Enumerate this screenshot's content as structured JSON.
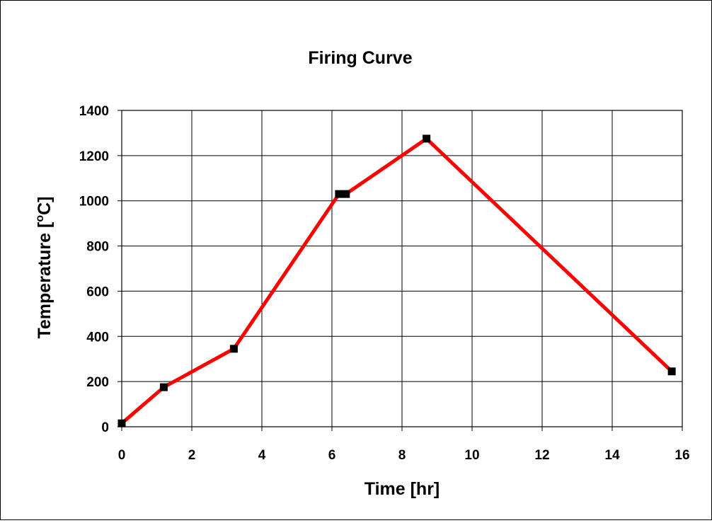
{
  "chart_data": {
    "type": "line",
    "title": "Firing Curve",
    "xlabel": "Time [hr]",
    "ylabel": {
      "main": "Temperature [",
      "superscript": "o",
      "unit": "C]"
    },
    "xlim": [
      0,
      16
    ],
    "ylim": [
      0,
      1400
    ],
    "xticks": [
      0,
      2,
      4,
      6,
      8,
      10,
      12,
      14,
      16
    ],
    "yticks": [
      0,
      200,
      400,
      600,
      800,
      1000,
      1200,
      1400
    ],
    "grid": true,
    "legend": "none",
    "series": [
      {
        "color": "#ff0000",
        "marker": "square",
        "marker_color": "#000000",
        "x": [
          0,
          1.2,
          3.2,
          6.2,
          6.4,
          8.7,
          15.7
        ],
        "y": [
          15,
          175,
          345,
          1030,
          1030,
          1275,
          245
        ]
      }
    ]
  }
}
